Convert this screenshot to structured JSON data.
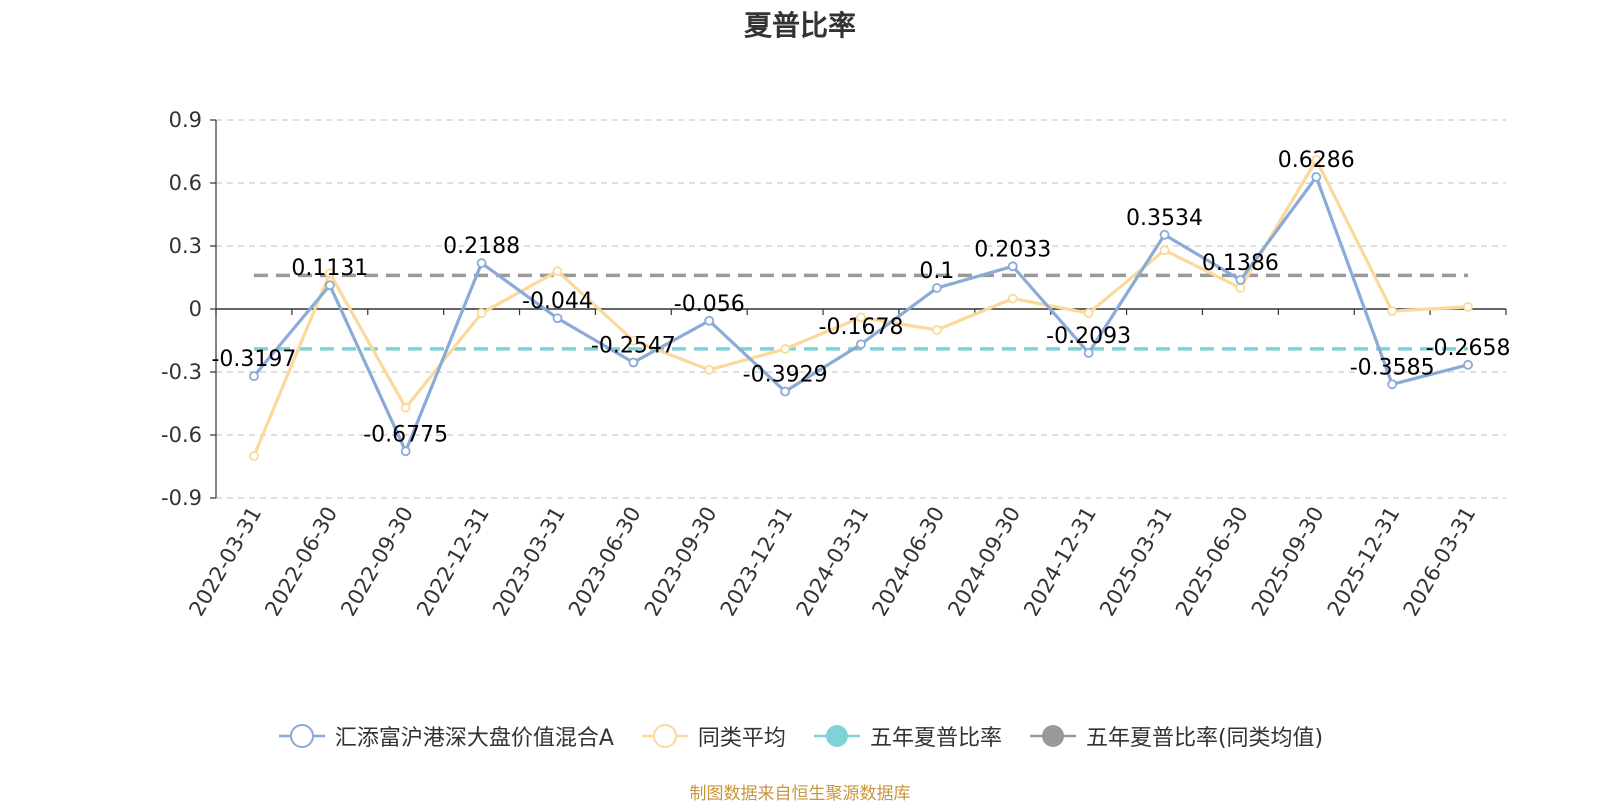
{
  "title": "夏普比率",
  "source_note": "制图数据来自恒生聚源数据库",
  "legend": [
    {
      "name": "汇添富沪港深大盘价值混合A",
      "color": "#8aaad8",
      "marker": "hollow-circle"
    },
    {
      "name": "同类平均",
      "color": "#fbd99a",
      "marker": "hollow-circle"
    },
    {
      "name": "五年夏普比率",
      "color": "#7fd3d6",
      "marker": "filled-circle"
    },
    {
      "name": "五年夏普比率(同类均值)",
      "color": "#999999",
      "marker": "filled-circle"
    }
  ],
  "chart_data": {
    "type": "line",
    "title": "夏普比率",
    "xlabel": "",
    "ylabel": "",
    "ylim": [
      -0.9,
      0.9
    ],
    "yticks": [
      "0.9",
      "0.6",
      "0.3",
      "0",
      "-0.3",
      "-0.6",
      "-0.9"
    ],
    "ytick_values": [
      0.9,
      0.6,
      0.3,
      0,
      -0.3,
      -0.6,
      -0.9
    ],
    "grid": true,
    "legend_position": "bottom",
    "categories": [
      "2022-03-31",
      "2022-06-30",
      "2022-09-30",
      "2022-12-31",
      "2023-03-31",
      "2023-06-30",
      "2023-09-30",
      "2023-12-31",
      "2024-03-31",
      "2024-06-30",
      "2024-09-30",
      "2024-12-31",
      "2025-03-31",
      "2025-06-30",
      "2025-09-30",
      "2025-12-31",
      "2026-03-31"
    ],
    "series": [
      {
        "name": "汇添富沪港深大盘价值混合A",
        "color": "#8aaad8",
        "values": [
          -0.3197,
          0.1131,
          -0.6775,
          0.2188,
          -0.044,
          -0.2547,
          -0.056,
          -0.3929,
          -0.1678,
          0.1,
          0.2033,
          -0.2093,
          0.3534,
          0.1386,
          0.6286,
          -0.3585,
          -0.2658
        ],
        "labels": [
          "-0.3197",
          "0.1131",
          "-0.6775",
          "0.2188",
          "-0.044",
          "-0.2547",
          "-0.056",
          "-0.3929",
          "-0.1678",
          "0.1",
          "0.2033",
          "-0.2093",
          "0.3534",
          "0.1386",
          "0.6286",
          "-0.3585",
          "-0.2658"
        ]
      },
      {
        "name": "同类平均",
        "color": "#fbd99a",
        "values": [
          -0.7,
          0.17,
          -0.47,
          -0.02,
          0.18,
          -0.15,
          -0.29,
          -0.19,
          -0.04,
          -0.1,
          0.05,
          -0.02,
          0.28,
          0.1,
          0.71,
          -0.01,
          0.01
        ]
      }
    ],
    "reference_lines": [
      {
        "name": "五年夏普比率",
        "color": "#7fd3d6",
        "value": -0.19
      },
      {
        "name": "五年夏普比率(同类均值)",
        "color": "#999999",
        "value": 0.16
      }
    ]
  }
}
